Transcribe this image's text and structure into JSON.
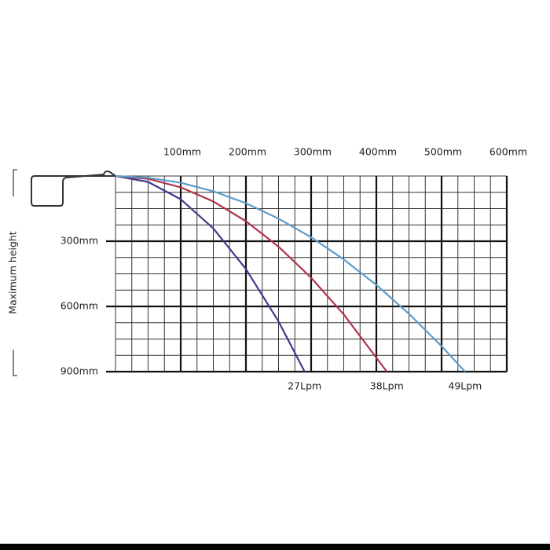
{
  "chart_data": {
    "type": "line",
    "y_label": "Maximum height",
    "xlim": [
      0,
      600
    ],
    "ylim": [
      900,
      0
    ],
    "xticks": [
      {
        "value": 100,
        "label": "100mm"
      },
      {
        "value": 200,
        "label": "200mm"
      },
      {
        "value": 300,
        "label": "300mm"
      },
      {
        "value": 400,
        "label": "400mm"
      },
      {
        "value": 500,
        "label": "500mm"
      },
      {
        "value": 600,
        "label": "600mm"
      }
    ],
    "yticks": [
      {
        "value": 300,
        "label": "300mm"
      },
      {
        "value": 600,
        "label": "600mm"
      },
      {
        "value": 900,
        "label": "900mm"
      }
    ],
    "grid": true,
    "grid_subdivisions": 4,
    "series": [
      {
        "name": "27Lpm",
        "color": "#3e3a8e",
        "x": [
          0,
          50,
          100,
          150,
          200,
          250,
          290
        ],
        "values": [
          0,
          27,
          107,
          241,
          428,
          669,
          900
        ]
      },
      {
        "name": "38Lpm",
        "color": "#b2334c",
        "x": [
          0,
          50,
          100,
          150,
          200,
          250,
          300,
          350,
          416
        ],
        "values": [
          0,
          13,
          52,
          117,
          208,
          325,
          468,
          637,
          900
        ]
      },
      {
        "name": "49Lpm",
        "color": "#5c9cca",
        "x": [
          0,
          50,
          100,
          150,
          200,
          250,
          300,
          350,
          400,
          450,
          500,
          536
        ],
        "values": [
          0,
          8,
          31,
          70,
          125,
          196,
          282,
          384,
          501,
          634,
          783,
          900
        ]
      }
    ]
  }
}
